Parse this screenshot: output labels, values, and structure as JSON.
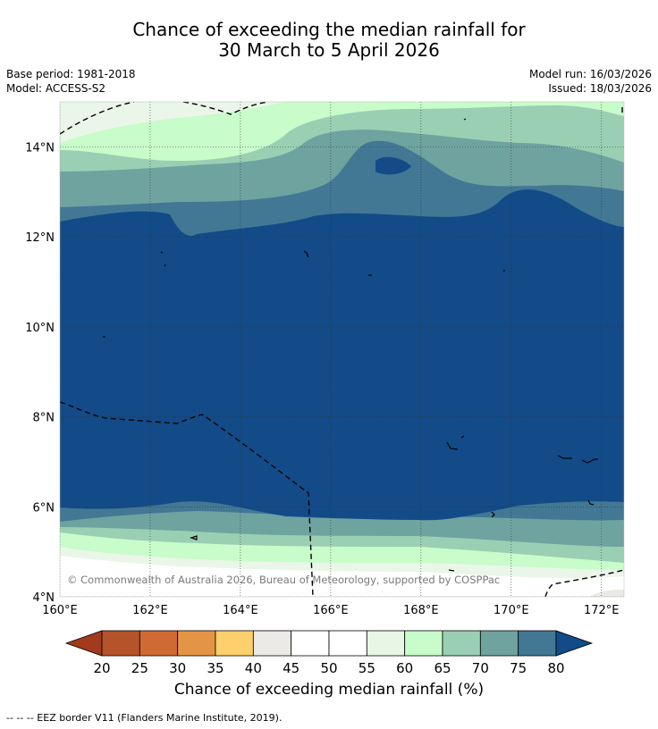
{
  "title": {
    "line1": "Chance of exceeding the median rainfall for",
    "line2": "30 March to 5 April 2026"
  },
  "meta": {
    "base_period": "Base period: 1981-2018",
    "model": "Model: ACCESS-S2",
    "model_run": "Model run: 16/03/2026",
    "issued": "Issued: 18/03/2026"
  },
  "map": {
    "lat_ticks": [
      {
        "value": 4,
        "label": "4°N"
      },
      {
        "value": 6,
        "label": "6°N"
      },
      {
        "value": 8,
        "label": "8°N"
      },
      {
        "value": 10,
        "label": "10°N"
      },
      {
        "value": 12,
        "label": "12°N"
      },
      {
        "value": 14,
        "label": "14°N"
      }
    ],
    "lon_ticks": [
      {
        "value": 160,
        "label": "160°E"
      },
      {
        "value": 162,
        "label": "162°E"
      },
      {
        "value": 164,
        "label": "164°E"
      },
      {
        "value": 166,
        "label": "166°E"
      },
      {
        "value": 168,
        "label": "168°E"
      },
      {
        "value": 170,
        "label": "170°E"
      },
      {
        "value": 172,
        "label": "172°E"
      }
    ],
    "lon_range": [
      160,
      172.5
    ],
    "lat_range": [
      4,
      15
    ],
    "copyright": "© Commonwealth of Australia 2026, Bureau of Meteorology, supported by COSPPac"
  },
  "legend": {
    "title": "Chance of exceeding median rainfall (%)",
    "ticks": [
      "20",
      "25",
      "30",
      "35",
      "40",
      "45",
      "50",
      "55",
      "60",
      "65",
      "70",
      "75",
      "80"
    ],
    "colors": [
      "#a23b1e",
      "#b5532a",
      "#d06a35",
      "#e39545",
      "#fdd06d",
      "#ebeae6",
      "#ffffff",
      "#ffffff",
      "#e8f6e6",
      "#c8fcca",
      "#9bcfb3",
      "#6ea3a0",
      "#427894",
      "#124b88"
    ]
  },
  "footnote": "--  --  -- EEZ border V11 (Flanders Marine Institute, 2019)."
}
